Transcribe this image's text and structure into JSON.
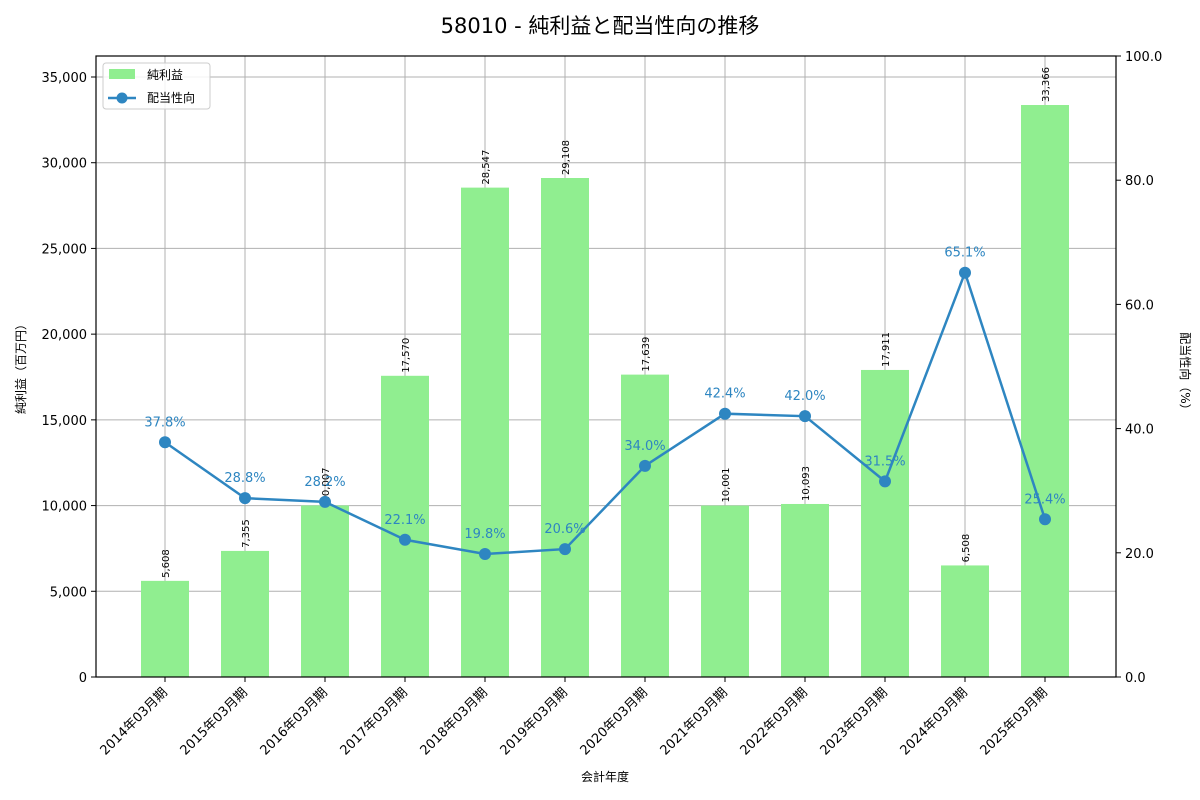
{
  "chart_data": {
    "type": "bar+line",
    "title": "58010 - 純利益と配当性向の推移",
    "xlabel": "会計年度",
    "ylabel": "純利益（百万円）",
    "y2label": "配当性向（%）",
    "categories": [
      "2014年03月期",
      "2015年03月期",
      "2016年03月期",
      "2017年03月期",
      "2018年03月期",
      "2019年03月期",
      "2020年03月期",
      "2021年03月期",
      "2022年03月期",
      "2023年03月期",
      "2024年03月期",
      "2025年03月期"
    ],
    "series": [
      {
        "name": "純利益",
        "type": "bar",
        "axis": "left",
        "color": "#90ee90",
        "values": [
          5608,
          7355,
          10007,
          17570,
          28547,
          29108,
          17639,
          10001,
          10093,
          17911,
          6508,
          33366
        ],
        "labels": [
          "5,608",
          "7,355",
          "10,007",
          "17,570",
          "28,547",
          "29,108",
          "17,639",
          "10,001",
          "10,093",
          "17,911",
          "6,508",
          "33,366"
        ]
      },
      {
        "name": "配当性向",
        "type": "line",
        "axis": "right",
        "color": "#2e86c1",
        "values": [
          37.8,
          28.8,
          28.2,
          22.1,
          19.8,
          20.6,
          34.0,
          42.4,
          42.0,
          31.5,
          65.1,
          25.4
        ],
        "labels": [
          "37.8%",
          "28.8%",
          "28.2%",
          "22.1%",
          "19.8%",
          "20.6%",
          "34.0%",
          "42.4%",
          "42.0%",
          "31.5%",
          "65.1%",
          "25.4%"
        ]
      }
    ],
    "ylim": [
      0,
      36225
    ],
    "y2lim": [
      0,
      100
    ],
    "yticks": [
      0,
      5000,
      10000,
      15000,
      20000,
      25000,
      30000,
      35000
    ],
    "ytick_labels": [
      "0",
      "5,000",
      "10,000",
      "15,000",
      "20,000",
      "25,000",
      "30,000",
      "35,000"
    ],
    "y2ticks": [
      0,
      20,
      40,
      60,
      80,
      100
    ],
    "y2tick_labels": [
      "0.0",
      "20.0",
      "40.0",
      "60.0",
      "80.0",
      "100.0"
    ],
    "grid": true,
    "legend_position": "upper left"
  }
}
